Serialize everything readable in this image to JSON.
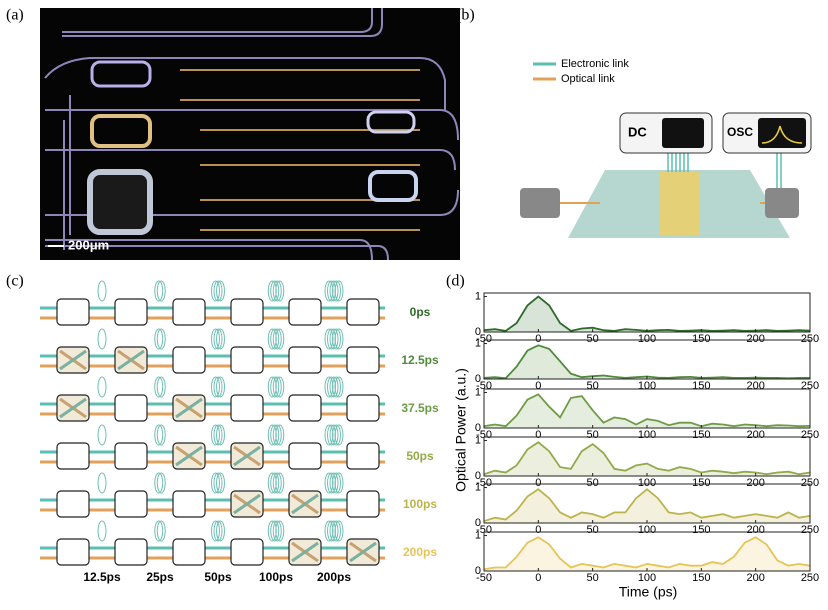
{
  "panel_labels": [
    "(a)",
    "(b)",
    "(c)",
    "(d)"
  ],
  "panel_a": {
    "scale_bar": "200μm"
  },
  "panel_b": {
    "legend": [
      "Electronic link",
      "Optical link"
    ],
    "dc": "DC",
    "osc": "OSC"
  },
  "panel_c": {
    "row_labels": [
      "0ps",
      "12.5ps",
      "37.5ps",
      "50ps",
      "100ps",
      "200ps"
    ],
    "row_colors": [
      "#2e6b2a",
      "#4f8a3a",
      "#6e9c46",
      "#93a94a",
      "#bcb44a",
      "#e6c457"
    ],
    "stage_labels": [
      "12.5ps",
      "25ps",
      "50ps",
      "100ps",
      "200ps"
    ]
  },
  "panel_d": {
    "ylabel": "Optical Power (a.u.)",
    "xlabel": "Time (ps)"
  },
  "chart_data": [
    {
      "type": "line",
      "color": "#2e6b2a",
      "xlim": [
        -50,
        250
      ],
      "ylim": [
        0,
        1.1
      ],
      "yticks": [
        0,
        1
      ],
      "xticks": [
        -50,
        0,
        50,
        100,
        150,
        200,
        250
      ],
      "x": [
        -50,
        -40,
        -30,
        -20,
        -10,
        0,
        10,
        20,
        30,
        40,
        50,
        60,
        70,
        80,
        90,
        100,
        110,
        120,
        130,
        140,
        150,
        160,
        170,
        180,
        190,
        200,
        210,
        220,
        230,
        240,
        250
      ],
      "values": [
        0.05,
        0.08,
        0.03,
        0.25,
        0.75,
        1.0,
        0.75,
        0.25,
        0.03,
        0.1,
        0.12,
        0.05,
        0.03,
        0.08,
        0.06,
        0.03,
        0.05,
        0.06,
        0.03,
        0.04,
        0.05,
        0.03,
        0.04,
        0.05,
        0.03,
        0.04,
        0.05,
        0.03,
        0.04,
        0.05,
        0.04
      ]
    },
    {
      "type": "line",
      "color": "#4f8a3a",
      "xlim": [
        -50,
        250
      ],
      "ylim": [
        0,
        1.1
      ],
      "yticks": [
        0,
        1
      ],
      "xticks": [
        -50,
        0,
        50,
        100,
        150,
        200,
        250
      ],
      "x": [
        -50,
        -40,
        -30,
        -20,
        -10,
        0,
        10,
        20,
        30,
        40,
        50,
        60,
        70,
        80,
        90,
        100,
        110,
        120,
        130,
        140,
        150,
        160,
        170,
        180,
        190,
        200,
        210,
        220,
        230,
        240,
        250
      ],
      "values": [
        0.03,
        0.05,
        0.02,
        0.35,
        0.8,
        0.95,
        0.85,
        0.5,
        0.15,
        0.05,
        0.08,
        0.1,
        0.06,
        0.03,
        0.05,
        0.07,
        0.04,
        0.03,
        0.05,
        0.06,
        0.03,
        0.04,
        0.05,
        0.03,
        0.03,
        0.04,
        0.03,
        0.03,
        0.02,
        0.03,
        0.03
      ]
    },
    {
      "type": "line",
      "color": "#6e9c46",
      "xlim": [
        -50,
        250
      ],
      "ylim": [
        0,
        1.1
      ],
      "yticks": [
        0,
        1
      ],
      "xticks": [
        -50,
        0,
        50,
        100,
        150,
        200,
        250
      ],
      "x": [
        -50,
        -40,
        -30,
        -20,
        -10,
        0,
        10,
        20,
        30,
        40,
        50,
        60,
        70,
        80,
        90,
        100,
        110,
        120,
        130,
        140,
        150,
        160,
        170,
        180,
        190,
        200,
        210,
        220,
        230,
        240,
        250
      ],
      "values": [
        0.05,
        0.1,
        0.05,
        0.35,
        0.8,
        0.95,
        0.6,
        0.3,
        0.85,
        0.9,
        0.5,
        0.15,
        0.3,
        0.25,
        0.1,
        0.25,
        0.2,
        0.08,
        0.15,
        0.15,
        0.05,
        0.12,
        0.1,
        0.05,
        0.1,
        0.08,
        0.05,
        0.08,
        0.07,
        0.05,
        0.06
      ]
    },
    {
      "type": "line",
      "color": "#93a94a",
      "xlim": [
        -50,
        250
      ],
      "ylim": [
        0,
        1.1
      ],
      "yticks": [
        0,
        1
      ],
      "xticks": [
        -50,
        0,
        50,
        100,
        150,
        200,
        250
      ],
      "x": [
        -50,
        -40,
        -30,
        -20,
        -10,
        0,
        10,
        20,
        30,
        40,
        50,
        60,
        70,
        80,
        90,
        100,
        110,
        120,
        130,
        140,
        150,
        160,
        170,
        180,
        190,
        200,
        210,
        220,
        230,
        240,
        250
      ],
      "values": [
        0.05,
        0.15,
        0.1,
        0.3,
        0.75,
        0.95,
        0.7,
        0.25,
        0.2,
        0.7,
        0.9,
        0.65,
        0.2,
        0.15,
        0.3,
        0.35,
        0.2,
        0.15,
        0.25,
        0.2,
        0.1,
        0.15,
        0.12,
        0.08,
        0.12,
        0.1,
        0.05,
        0.1,
        0.12,
        0.05,
        0.1
      ]
    },
    {
      "type": "line",
      "color": "#bcb44a",
      "xlim": [
        -50,
        250
      ],
      "ylim": [
        0,
        1.1
      ],
      "yticks": [
        0,
        1
      ],
      "xticks": [
        -50,
        0,
        50,
        100,
        150,
        200,
        250
      ],
      "x": [
        -50,
        -40,
        -30,
        -20,
        -10,
        0,
        10,
        20,
        30,
        40,
        50,
        60,
        70,
        80,
        90,
        100,
        110,
        120,
        130,
        140,
        150,
        160,
        170,
        180,
        190,
        200,
        210,
        220,
        230,
        240,
        250
      ],
      "values": [
        0.05,
        0.15,
        0.1,
        0.35,
        0.75,
        0.95,
        0.7,
        0.3,
        0.15,
        0.3,
        0.25,
        0.15,
        0.3,
        0.3,
        0.7,
        0.95,
        0.7,
        0.3,
        0.25,
        0.3,
        0.15,
        0.2,
        0.25,
        0.15,
        0.2,
        0.25,
        0.2,
        0.15,
        0.3,
        0.15,
        0.2
      ]
    },
    {
      "type": "line",
      "color": "#e6c457",
      "xlim": [
        -50,
        250
      ],
      "ylim": [
        0,
        1.1
      ],
      "yticks": [
        0,
        1
      ],
      "xticks": [
        -50,
        0,
        50,
        100,
        150,
        200,
        250
      ],
      "x": [
        -50,
        -40,
        -30,
        -20,
        -10,
        0,
        10,
        20,
        30,
        40,
        50,
        60,
        70,
        80,
        90,
        100,
        110,
        120,
        130,
        140,
        150,
        160,
        170,
        180,
        190,
        200,
        210,
        220,
        230,
        240,
        250
      ],
      "values": [
        0.05,
        0.1,
        0.1,
        0.4,
        0.8,
        0.95,
        0.75,
        0.35,
        0.1,
        0.2,
        0.15,
        0.1,
        0.2,
        0.15,
        0.1,
        0.2,
        0.15,
        0.1,
        0.2,
        0.15,
        0.15,
        0.25,
        0.2,
        0.4,
        0.8,
        0.95,
        0.75,
        0.3,
        0.15,
        0.2,
        0.15
      ]
    }
  ]
}
